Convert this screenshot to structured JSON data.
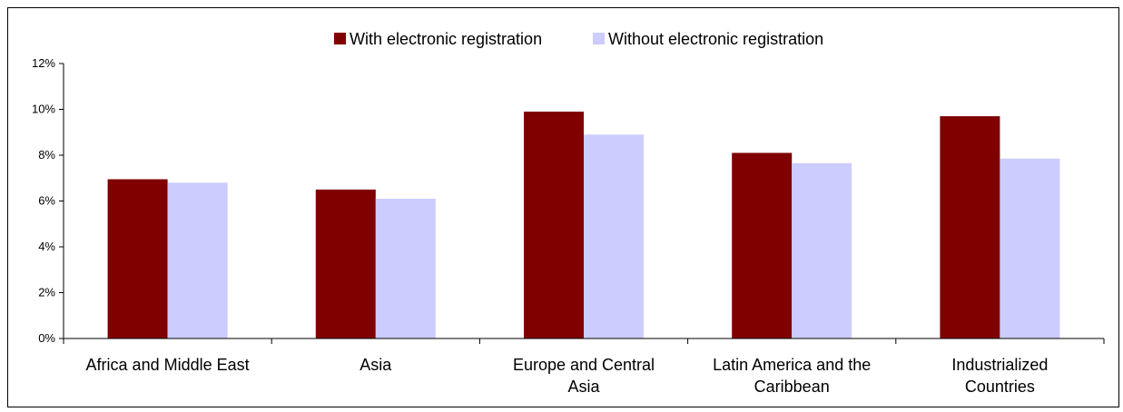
{
  "chart_data": {
    "type": "bar",
    "categories": [
      [
        "Africa and Middle East"
      ],
      [
        "Asia"
      ],
      [
        "Europe and Central",
        "Asia"
      ],
      [
        "Latin America and the",
        "Caribbean"
      ],
      [
        "Industrialized",
        "Countries"
      ]
    ],
    "series": [
      {
        "name": "With electronic registration",
        "color": "#800000",
        "values": [
          6.95,
          6.5,
          9.9,
          8.1,
          9.7
        ]
      },
      {
        "name": "Without electronic registration",
        "color": "#ccccff",
        "values": [
          6.8,
          6.1,
          8.9,
          7.65,
          7.85
        ]
      }
    ],
    "y_ticks": [
      0,
      2,
      4,
      6,
      8,
      10,
      12
    ],
    "y_tick_labels": [
      "0%",
      "2%",
      "4%",
      "6%",
      "8%",
      "10%",
      "12%"
    ],
    "ylim": [
      0,
      12
    ],
    "legend_position": "top-center",
    "grid": false
  }
}
